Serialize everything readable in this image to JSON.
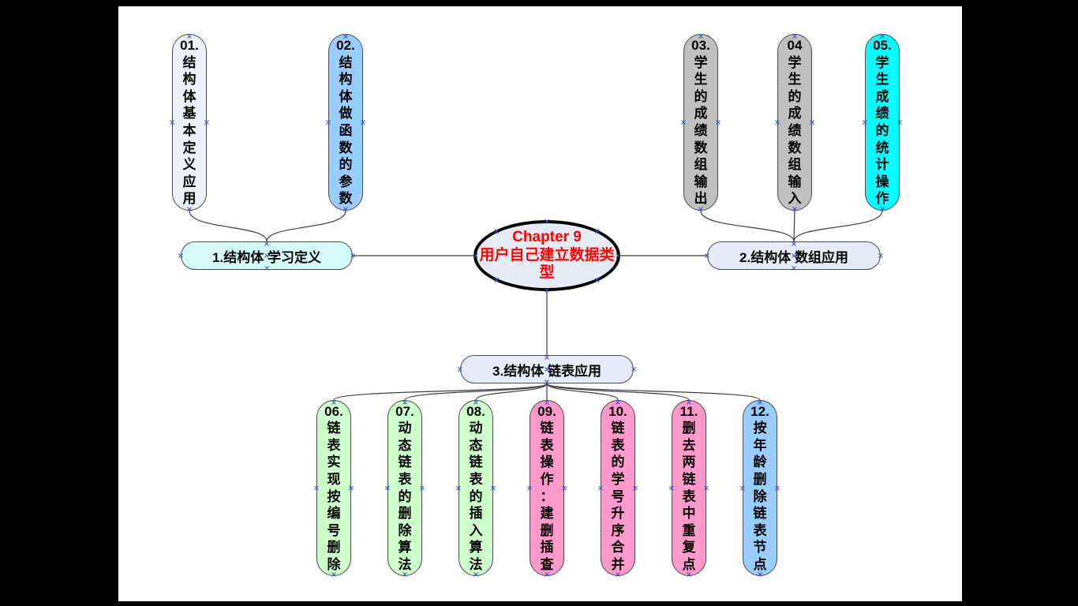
{
  "colors": {
    "screen_background": "#000000",
    "slide_background": "#ffffff",
    "connector": "#3c3c3c",
    "handle_marker": "#3b4fd0",
    "node_border": "#4a4a4a"
  },
  "center": {
    "title": "Chapter 9",
    "subtitle": "用户自己建立数据类型",
    "fill": "#e6ebf5",
    "text_color": "#ff0000",
    "border_color": "#000000"
  },
  "branches": [
    {
      "label": "1.结构体 学习定义",
      "fill": "#d5fbfb"
    },
    {
      "label": "2.结构体 数组应用",
      "fill": "#e6ebf7"
    },
    {
      "label": "3.结构体 链表应用",
      "fill": "#e6ebf7"
    }
  ],
  "leaves": [
    {
      "text": "01.结构体基本定义应用",
      "fill": "#eef0f9"
    },
    {
      "text": "02.结构体做函数的参数",
      "fill": "#99ccff"
    },
    {
      "text": "03.学生的成绩数组输出",
      "fill": "#c0c0c0"
    },
    {
      "text": "04学生的成绩数组输入",
      "fill": "#c0c0c0"
    },
    {
      "text": "05.学生成绩的统计操作",
      "fill": "#00ffff"
    },
    {
      "text": "06.链表实现按编号删除",
      "fill": "#ccffcc"
    },
    {
      "text": "07.动态链表的删除算法",
      "fill": "#ccffcc"
    },
    {
      "text": "08.动态链表的插入算法",
      "fill": "#ccffcc"
    },
    {
      "text": "09.链表操作：建删插查",
      "fill": "#ff99cc"
    },
    {
      "text": "10.链表的学号升序合并",
      "fill": "#ff99cc"
    },
    {
      "text": "11.删去两链表中重复点",
      "fill": "#ff99cc"
    },
    {
      "text": "12.按年龄删除链表节点",
      "fill": "#99ccff"
    }
  ]
}
